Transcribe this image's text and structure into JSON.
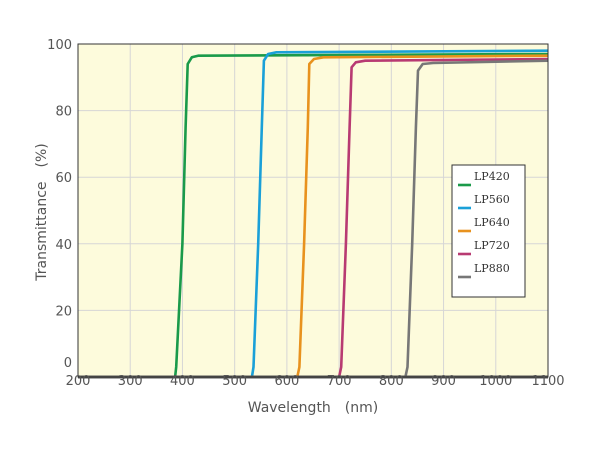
{
  "chart_data": {
    "type": "line",
    "title": "",
    "xlabel": "Wavelength　(nm)",
    "ylabel": "Transmittance　(%)",
    "xlim": [
      200,
      1100
    ],
    "ylim": [
      0,
      100
    ],
    "xticks": [
      "200",
      "300",
      "400",
      "500",
      "600",
      "700",
      "800",
      "900",
      "1000",
      "1100"
    ],
    "yticks": [
      "0",
      "20",
      "40",
      "60",
      "80",
      "100"
    ],
    "grid": true,
    "background": "#fdfbdc",
    "legend_position": "right",
    "series": [
      {
        "name": "LP420",
        "color": "#1a9a4a",
        "x": [
          200,
          386,
          388,
          400,
          406,
          410,
          418,
          430,
          1100
        ],
        "y": [
          0,
          0,
          3,
          40,
          75,
          94,
          96,
          96.5,
          97
        ]
      },
      {
        "name": "LP560",
        "color": "#1aa0d8",
        "x": [
          200,
          533,
          536,
          545,
          552,
          556,
          564,
          580,
          1100
        ],
        "y": [
          0,
          0,
          3,
          40,
          75,
          95,
          97,
          97.5,
          98
        ]
      },
      {
        "name": "LP640",
        "color": "#e8921e",
        "x": [
          200,
          620,
          624,
          633,
          640,
          643,
          652,
          670,
          1100
        ],
        "y": [
          0,
          0,
          3,
          40,
          75,
          94,
          95.5,
          96,
          96.5
        ]
      },
      {
        "name": "LP720",
        "color": "#b83a72",
        "x": [
          200,
          700,
          704,
          713,
          720,
          724,
          732,
          750,
          1100
        ],
        "y": [
          0,
          0,
          3,
          40,
          75,
          93,
          94.5,
          95,
          95.5
        ]
      },
      {
        "name": "LP880",
        "color": "#777777",
        "x": [
          200,
          827,
          831,
          840,
          847,
          851,
          860,
          880,
          1100
        ],
        "y": [
          0,
          0,
          3,
          40,
          75,
          92,
          94,
          94.3,
          95
        ]
      }
    ]
  }
}
